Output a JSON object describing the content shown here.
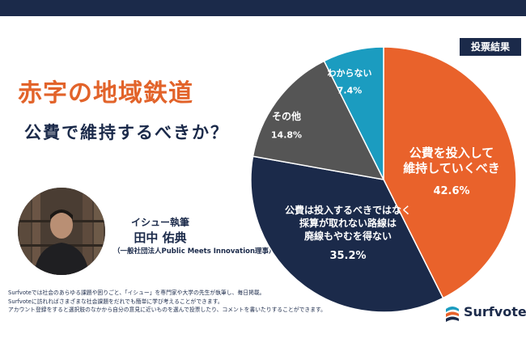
{
  "header": {
    "title": "赤字の地域鉄道",
    "subtitle": "公費で維持するべきか？",
    "badge": "投票結果"
  },
  "author": {
    "label": "イシュー執筆",
    "name": "田中 佑典",
    "affiliation": "（一般社団法人Public Meets Innovation理事）"
  },
  "chart_data": {
    "type": "pie",
    "slices": [
      {
        "label_lines": [
          "公費を投入して",
          "維持していくべき"
        ],
        "value": 42.6,
        "value_label": "42.6%",
        "color": "#e9622b"
      },
      {
        "label_lines": [
          "公費は投入するべきではなく",
          "採算が取れない路線は",
          "廃線もやむを得ない"
        ],
        "value": 35.2,
        "value_label": "35.2%",
        "color": "#1b2a4a"
      },
      {
        "label_lines": [
          "その他"
        ],
        "value": 14.8,
        "value_label": "14.8%",
        "color": "#555555"
      },
      {
        "label_lines": [
          "わからない"
        ],
        "value": 7.4,
        "value_label": "7.4%",
        "color": "#1b9cc0"
      }
    ],
    "start": "12 o'clock",
    "direction": "clockwise"
  },
  "footer": {
    "lines": [
      "Surfvoteでは社会のあらゆる課題や困りごと、「イシュー」を専門家や大学の先生が執筆し、毎日掲載。",
      "Surfvoteに訪れればさまざまな社会課題をだれでも簡単に学び考えることができます。",
      "アカウント登録をすると選択肢のなかから自分の意見に近いものを選んで投票したり、コメントを書いたりすることができます。"
    ]
  },
  "brand": {
    "name": "Surfvote"
  }
}
